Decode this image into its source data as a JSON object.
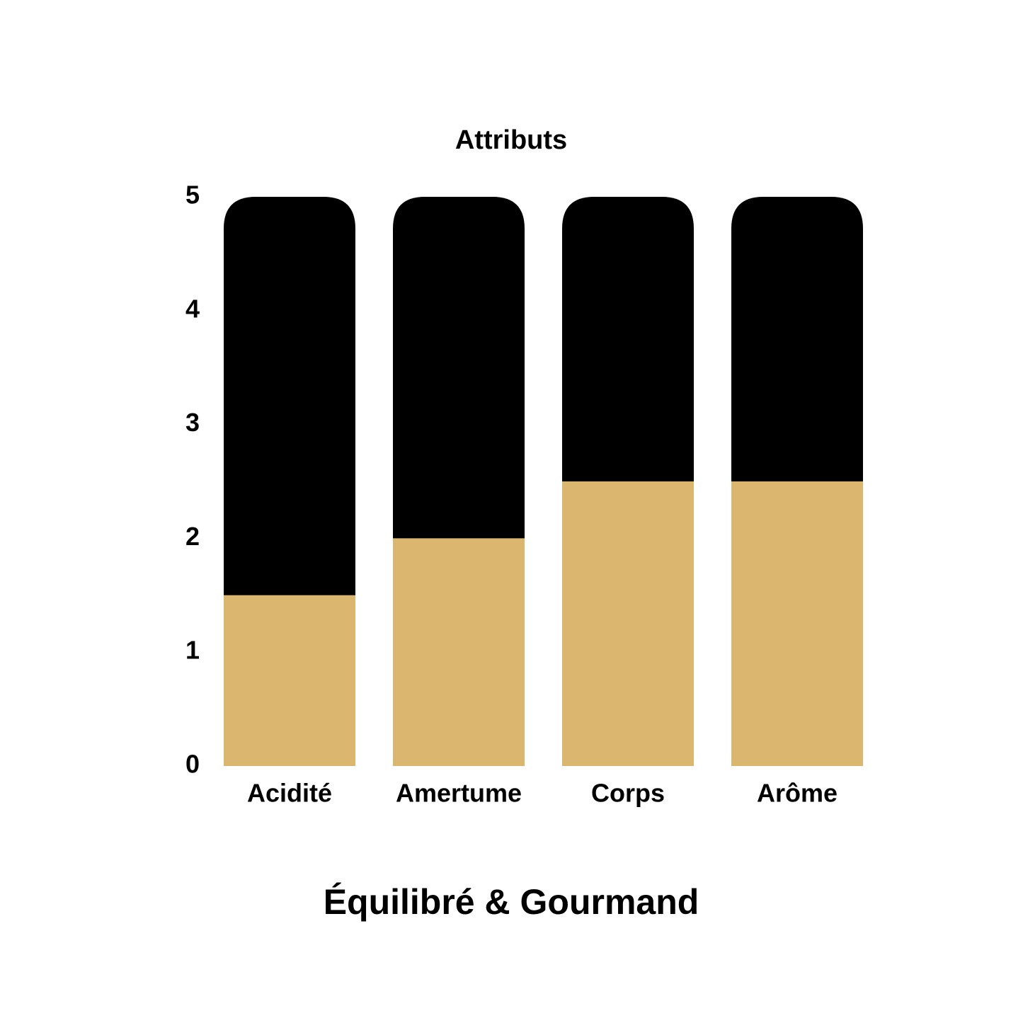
{
  "chart_data": {
    "type": "stacked_bar",
    "title": "Attributs",
    "subtitle": "Équilibré & Gourmand",
    "categories": [
      "Acidité",
      "Amertume",
      "Corps",
      "Arôme"
    ],
    "series": [
      {
        "color": "#dbb66e",
        "values": [
          1.5,
          2,
          2.5,
          2.5
        ]
      },
      {
        "color": "#000000",
        "values": [
          3.5,
          3,
          2.5,
          2.5
        ]
      }
    ],
    "ylim": [
      0,
      5
    ],
    "yticks": [
      0,
      1,
      2,
      3,
      4,
      5
    ],
    "grid": false
  }
}
